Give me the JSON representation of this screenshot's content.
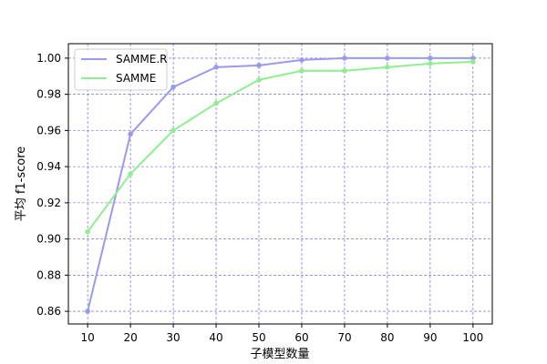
{
  "chart_data": {
    "type": "line",
    "x": [
      10,
      20,
      30,
      40,
      50,
      60,
      70,
      80,
      90,
      100
    ],
    "series": [
      {
        "name": "SAMME.R",
        "color": "#9999ee",
        "values": [
          0.86,
          0.958,
          0.984,
          0.995,
          0.996,
          0.999,
          1.0,
          1.0,
          1.0,
          1.0
        ]
      },
      {
        "name": "SAMME",
        "color": "#90ee90",
        "values": [
          0.904,
          0.936,
          0.96,
          0.975,
          0.988,
          0.993,
          0.993,
          0.995,
          0.997,
          0.998
        ]
      }
    ],
    "xlabel": "子模型数量",
    "ylabel": "平均 f1-score",
    "x_ticks": [
      "10",
      "20",
      "30",
      "40",
      "50",
      "60",
      "70",
      "80",
      "90",
      "100"
    ],
    "y_ticks": [
      "0.86",
      "0.88",
      "0.90",
      "0.92",
      "0.94",
      "0.96",
      "0.98",
      "1.00"
    ],
    "xlim": [
      5.5,
      104.5
    ],
    "ylim": [
      0.853,
      1.008
    ],
    "grid": true,
    "grid_color": "#5555dd",
    "legend_position": "top-left"
  }
}
